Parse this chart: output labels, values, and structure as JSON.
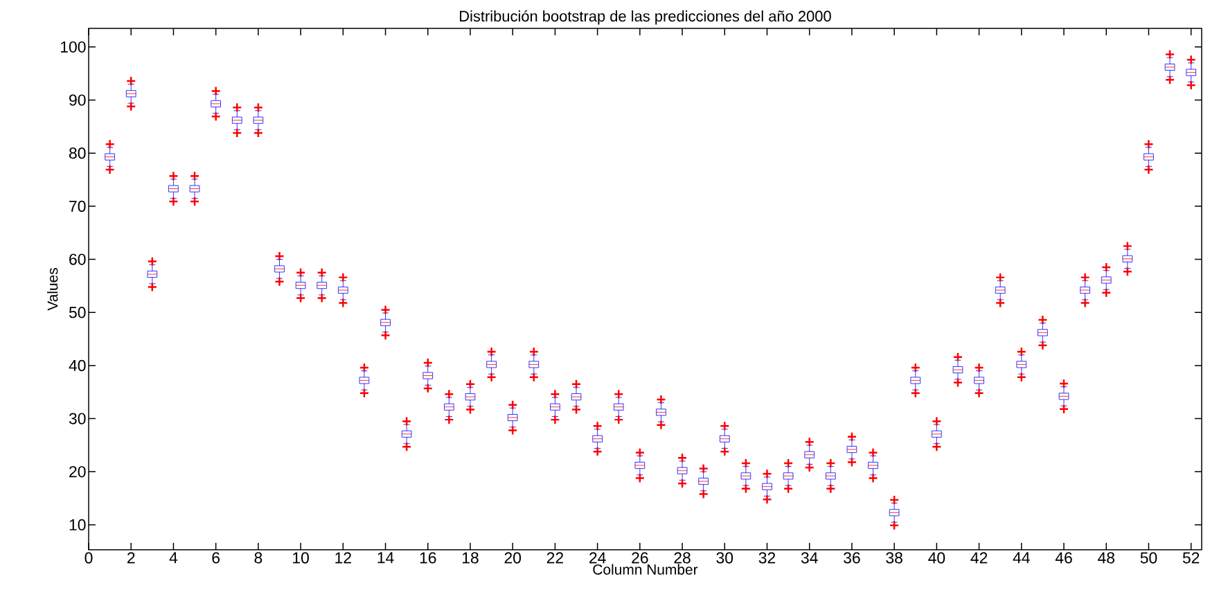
{
  "chart_data": {
    "type": "box",
    "title": "Distribución bootstrap de las predicciones del año 2000",
    "xlabel": "Column Number",
    "ylabel": "Values",
    "x": [
      1,
      2,
      3,
      4,
      5,
      6,
      7,
      8,
      9,
      10,
      11,
      12,
      13,
      14,
      15,
      16,
      17,
      18,
      19,
      20,
      21,
      22,
      23,
      24,
      25,
      26,
      27,
      28,
      29,
      30,
      31,
      32,
      33,
      34,
      35,
      36,
      37,
      38,
      39,
      40,
      41,
      42,
      43,
      44,
      45,
      46,
      47,
      48,
      49,
      50,
      51,
      52
    ],
    "xlim": [
      0,
      52.5
    ],
    "xticks": [
      0,
      2,
      4,
      6,
      8,
      10,
      12,
      14,
      16,
      18,
      20,
      22,
      24,
      26,
      28,
      30,
      32,
      34,
      36,
      38,
      40,
      42,
      44,
      46,
      48,
      50,
      52
    ],
    "ylim": [
      5.3,
      103.5
    ],
    "yticks": [
      10,
      20,
      30,
      40,
      50,
      60,
      70,
      80,
      90,
      100
    ],
    "series": [
      {
        "color": "#0000ff",
        "boxes": [
          {
            "low": 77.5,
            "q1": 78.7,
            "median": 79.3,
            "q3": 79.9,
            "high": 81.1,
            "outliers": [
              76.9,
              81.7
            ]
          },
          {
            "low": 89.4,
            "q1": 90.6,
            "median": 91.2,
            "q3": 91.8,
            "high": 93.0,
            "outliers": [
              88.8,
              93.6
            ]
          },
          {
            "low": 55.4,
            "q1": 56.6,
            "median": 57.2,
            "q3": 57.8,
            "high": 59.0,
            "outliers": [
              54.8,
              59.6
            ]
          },
          {
            "low": 71.5,
            "q1": 72.7,
            "median": 73.3,
            "q3": 73.9,
            "high": 75.1,
            "outliers": [
              70.9,
              75.7
            ]
          },
          {
            "low": 71.5,
            "q1": 72.7,
            "median": 73.3,
            "q3": 73.9,
            "high": 75.1,
            "outliers": [
              70.9,
              75.7
            ]
          },
          {
            "low": 87.5,
            "q1": 88.7,
            "median": 89.3,
            "q3": 89.9,
            "high": 91.1,
            "outliers": [
              86.9,
              91.7
            ]
          },
          {
            "low": 84.4,
            "q1": 85.6,
            "median": 86.2,
            "q3": 86.8,
            "high": 88.0,
            "outliers": [
              83.8,
              88.6
            ]
          },
          {
            "low": 84.4,
            "q1": 85.6,
            "median": 86.2,
            "q3": 86.8,
            "high": 88.0,
            "outliers": [
              83.8,
              88.6
            ]
          },
          {
            "low": 56.4,
            "q1": 57.6,
            "median": 58.2,
            "q3": 58.8,
            "high": 60.0,
            "outliers": [
              55.8,
              60.6
            ]
          },
          {
            "low": 53.3,
            "q1": 54.5,
            "median": 55.1,
            "q3": 55.7,
            "high": 56.9,
            "outliers": [
              52.7,
              57.5
            ]
          },
          {
            "low": 53.3,
            "q1": 54.5,
            "median": 55.1,
            "q3": 55.7,
            "high": 56.9,
            "outliers": [
              52.7,
              57.5
            ]
          },
          {
            "low": 52.4,
            "q1": 53.6,
            "median": 54.2,
            "q3": 54.8,
            "high": 56.0,
            "outliers": [
              51.8,
              56.6
            ]
          },
          {
            "low": 35.4,
            "q1": 36.6,
            "median": 37.2,
            "q3": 37.8,
            "high": 39.0,
            "outliers": [
              34.8,
              39.6
            ]
          },
          {
            "low": 46.3,
            "q1": 47.5,
            "median": 48.1,
            "q3": 48.7,
            "high": 49.9,
            "outliers": [
              45.7,
              50.5
            ]
          },
          {
            "low": 25.3,
            "q1": 26.5,
            "median": 27.1,
            "q3": 27.7,
            "high": 28.9,
            "outliers": [
              24.7,
              29.5
            ]
          },
          {
            "low": 36.3,
            "q1": 37.5,
            "median": 38.1,
            "q3": 38.7,
            "high": 39.9,
            "outliers": [
              35.7,
              40.5
            ]
          },
          {
            "low": 30.4,
            "q1": 31.6,
            "median": 32.2,
            "q3": 32.8,
            "high": 34.0,
            "outliers": [
              29.8,
              34.6
            ]
          },
          {
            "low": 32.3,
            "q1": 33.5,
            "median": 34.1,
            "q3": 34.7,
            "high": 35.9,
            "outliers": [
              31.7,
              36.5
            ]
          },
          {
            "low": 38.4,
            "q1": 39.6,
            "median": 40.2,
            "q3": 40.8,
            "high": 42.0,
            "outliers": [
              37.8,
              42.6
            ]
          },
          {
            "low": 28.4,
            "q1": 29.6,
            "median": 30.2,
            "q3": 30.8,
            "high": 32.0,
            "outliers": [
              27.8,
              32.6
            ]
          },
          {
            "low": 38.4,
            "q1": 39.6,
            "median": 40.2,
            "q3": 40.8,
            "high": 42.0,
            "outliers": [
              37.8,
              42.6
            ]
          },
          {
            "low": 30.4,
            "q1": 31.6,
            "median": 32.2,
            "q3": 32.8,
            "high": 34.0,
            "outliers": [
              29.8,
              34.6
            ]
          },
          {
            "low": 32.3,
            "q1": 33.5,
            "median": 34.1,
            "q3": 34.7,
            "high": 35.9,
            "outliers": [
              31.7,
              36.5
            ]
          },
          {
            "low": 24.4,
            "q1": 25.6,
            "median": 26.2,
            "q3": 26.8,
            "high": 28.0,
            "outliers": [
              23.8,
              28.6
            ]
          },
          {
            "low": 30.4,
            "q1": 31.6,
            "median": 32.2,
            "q3": 32.8,
            "high": 34.0,
            "outliers": [
              29.8,
              34.6
            ]
          },
          {
            "low": 19.4,
            "q1": 20.6,
            "median": 21.2,
            "q3": 21.8,
            "high": 23.0,
            "outliers": [
              18.8,
              23.6
            ]
          },
          {
            "low": 29.4,
            "q1": 30.6,
            "median": 31.2,
            "q3": 31.8,
            "high": 33.0,
            "outliers": [
              28.8,
              33.6
            ]
          },
          {
            "low": 18.4,
            "q1": 19.6,
            "median": 20.2,
            "q3": 20.8,
            "high": 22.0,
            "outliers": [
              17.8,
              22.6
            ]
          },
          {
            "low": 16.4,
            "q1": 17.6,
            "median": 18.2,
            "q3": 18.8,
            "high": 20.0,
            "outliers": [
              15.8,
              20.6
            ]
          },
          {
            "low": 24.4,
            "q1": 25.6,
            "median": 26.2,
            "q3": 26.8,
            "high": 28.0,
            "outliers": [
              23.8,
              28.6
            ]
          },
          {
            "low": 17.4,
            "q1": 18.6,
            "median": 19.2,
            "q3": 19.8,
            "high": 21.0,
            "outliers": [
              16.8,
              21.6
            ]
          },
          {
            "low": 15.4,
            "q1": 16.6,
            "median": 17.2,
            "q3": 17.8,
            "high": 19.0,
            "outliers": [
              14.8,
              19.6
            ]
          },
          {
            "low": 17.4,
            "q1": 18.6,
            "median": 19.2,
            "q3": 19.8,
            "high": 21.0,
            "outliers": [
              16.8,
              21.6
            ]
          },
          {
            "low": 21.4,
            "q1": 22.6,
            "median": 23.2,
            "q3": 23.8,
            "high": 25.0,
            "outliers": [
              20.8,
              25.6
            ]
          },
          {
            "low": 17.4,
            "q1": 18.6,
            "median": 19.2,
            "q3": 19.8,
            "high": 21.0,
            "outliers": [
              16.8,
              21.6
            ]
          },
          {
            "low": 22.4,
            "q1": 23.6,
            "median": 24.2,
            "q3": 24.8,
            "high": 26.0,
            "outliers": [
              21.8,
              26.6
            ]
          },
          {
            "low": 19.4,
            "q1": 20.6,
            "median": 21.2,
            "q3": 21.8,
            "high": 23.0,
            "outliers": [
              18.8,
              23.6
            ]
          },
          {
            "low": 10.5,
            "q1": 11.7,
            "median": 12.3,
            "q3": 12.9,
            "high": 14.1,
            "outliers": [
              9.9,
              14.7
            ]
          },
          {
            "low": 35.4,
            "q1": 36.6,
            "median": 37.2,
            "q3": 37.8,
            "high": 39.0,
            "outliers": [
              34.8,
              39.6
            ]
          },
          {
            "low": 25.3,
            "q1": 26.5,
            "median": 27.1,
            "q3": 27.7,
            "high": 28.9,
            "outliers": [
              24.7,
              29.5
            ]
          },
          {
            "low": 37.4,
            "q1": 38.6,
            "median": 39.2,
            "q3": 39.8,
            "high": 41.0,
            "outliers": [
              36.8,
              41.6
            ]
          },
          {
            "low": 35.4,
            "q1": 36.6,
            "median": 37.2,
            "q3": 37.8,
            "high": 39.0,
            "outliers": [
              34.8,
              39.6
            ]
          },
          {
            "low": 52.4,
            "q1": 53.6,
            "median": 54.2,
            "q3": 54.8,
            "high": 56.0,
            "outliers": [
              51.8,
              56.6
            ]
          },
          {
            "low": 38.4,
            "q1": 39.6,
            "median": 40.2,
            "q3": 40.8,
            "high": 42.0,
            "outliers": [
              37.8,
              42.6
            ]
          },
          {
            "low": 44.4,
            "q1": 45.6,
            "median": 46.2,
            "q3": 46.8,
            "high": 48.0,
            "outliers": [
              43.8,
              48.6
            ]
          },
          {
            "low": 32.4,
            "q1": 33.6,
            "median": 34.2,
            "q3": 34.8,
            "high": 36.0,
            "outliers": [
              31.8,
              36.6
            ]
          },
          {
            "low": 52.4,
            "q1": 53.6,
            "median": 54.2,
            "q3": 54.8,
            "high": 56.0,
            "outliers": [
              51.8,
              56.6
            ]
          },
          {
            "low": 54.3,
            "q1": 55.5,
            "median": 56.1,
            "q3": 56.7,
            "high": 57.9,
            "outliers": [
              53.7,
              58.5
            ]
          },
          {
            "low": 58.3,
            "q1": 59.5,
            "median": 60.1,
            "q3": 60.7,
            "high": 61.9,
            "outliers": [
              57.7,
              62.5
            ]
          },
          {
            "low": 77.5,
            "q1": 78.7,
            "median": 79.3,
            "q3": 79.9,
            "high": 81.1,
            "outliers": [
              76.9,
              81.7
            ]
          },
          {
            "low": 94.4,
            "q1": 95.6,
            "median": 96.2,
            "q3": 96.8,
            "high": 98.0,
            "outliers": [
              93.8,
              98.6
            ]
          },
          {
            "low": 93.4,
            "q1": 94.6,
            "median": 95.2,
            "q3": 95.8,
            "high": 97.0,
            "outliers": [
              92.8,
              97.6
            ]
          }
        ]
      }
    ]
  }
}
